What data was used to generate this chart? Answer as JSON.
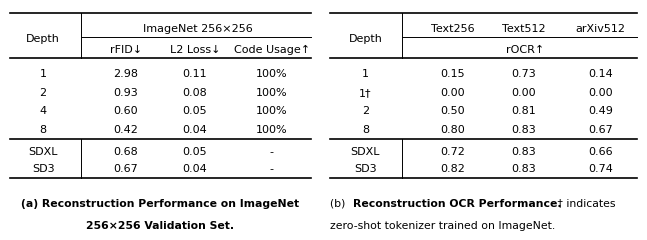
{
  "table_a": {
    "col_header_row1_label": "ImageNet 256×256",
    "col_header_row2": [
      "rFID↓",
      "L2 Loss↓",
      "Code Usage↑"
    ],
    "depth_label": "Depth",
    "rows": [
      [
        "1",
        "2.98",
        "0.11",
        "100%"
      ],
      [
        "2",
        "0.93",
        "0.08",
        "100%"
      ],
      [
        "4",
        "0.60",
        "0.05",
        "100%"
      ],
      [
        "8",
        "0.42",
        "0.04",
        "100%"
      ]
    ],
    "separator_rows": [
      [
        "SDXL",
        "0.68",
        "0.05",
        "-"
      ],
      [
        "SD3",
        "0.67",
        "0.04",
        "-"
      ]
    ],
    "caption_normal": "(a) ",
    "caption_bold": "Reconstruction Performance on ImageNet\n256×256 Validation Set."
  },
  "table_b": {
    "col_header_row1": [
      "Text256",
      "Text512",
      "arXiv512"
    ],
    "col_header_row2_label": "rOCR↑",
    "depth_label": "Depth",
    "rows": [
      [
        "1",
        "0.15",
        "0.73",
        "0.14"
      ],
      [
        "1†",
        "0.00",
        "0.00",
        "0.00"
      ],
      [
        "2",
        "0.50",
        "0.81",
        "0.49"
      ],
      [
        "8",
        "0.80",
        "0.83",
        "0.67"
      ]
    ],
    "separator_rows": [
      [
        "SDXL",
        "0.72",
        "0.83",
        "0.66"
      ],
      [
        "SD3",
        "0.82",
        "0.83",
        "0.74"
      ]
    ],
    "caption_normal_prefix": "(b) ",
    "caption_bold": "Reconstruction OCR Performance.",
    "caption_normal_suffix": " † indicates\nzero-shot tokenizer trained on ImageNet."
  },
  "bg_color": "#ffffff",
  "line_color": "#000000",
  "font_size": 8.0,
  "caption_fontsize": 7.8
}
